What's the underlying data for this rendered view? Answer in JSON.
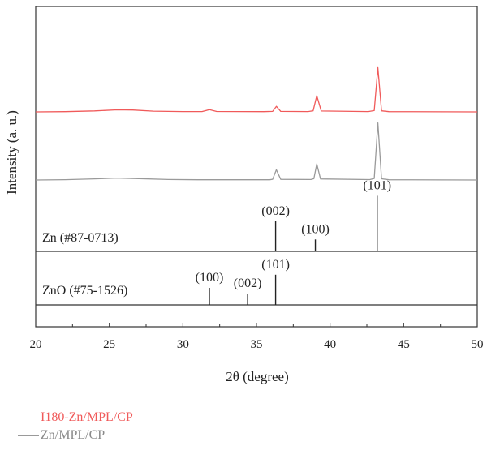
{
  "chart_data": {
    "type": "line",
    "xlabel": "2θ (degree)",
    "ylabel": "Intensity (a. u.)",
    "xlim": [
      20,
      50
    ],
    "x_ticks": [
      "20",
      "25",
      "30",
      "35",
      "40",
      "45",
      "50"
    ],
    "series": [
      {
        "name": "I180-Zn/MPL/CP",
        "color": "#f05a5a",
        "baseline": 0,
        "points": [
          [
            20,
            0
          ],
          [
            22,
            0.3
          ],
          [
            24,
            1.1
          ],
          [
            25.5,
            2.4
          ],
          [
            26.6,
            2.2
          ],
          [
            28,
            0.9
          ],
          [
            30,
            0.4
          ],
          [
            31.3,
            0.4
          ],
          [
            31.8,
            2.6
          ],
          [
            32.3,
            0.5
          ],
          [
            35.5,
            0.3
          ],
          [
            36.1,
            0.6
          ],
          [
            36.35,
            6.5
          ],
          [
            36.65,
            0.6
          ],
          [
            38.5,
            0.4
          ],
          [
            38.85,
            1.2
          ],
          [
            39.1,
            19
          ],
          [
            39.4,
            1.0
          ],
          [
            42.6,
            0.4
          ],
          [
            43,
            1.5
          ],
          [
            43.25,
            52
          ],
          [
            43.5,
            1.2
          ],
          [
            44,
            0.3
          ],
          [
            50,
            0
          ]
        ]
      },
      {
        "name": "Zn/MPL/CP",
        "color": "#9a9a9a",
        "baseline": 0,
        "points": [
          [
            20,
            0
          ],
          [
            22,
            0.4
          ],
          [
            24,
            1.3
          ],
          [
            25.5,
            2.3
          ],
          [
            27,
            1.6
          ],
          [
            29,
            0.6
          ],
          [
            31,
            0.3
          ],
          [
            35.9,
            0.3
          ],
          [
            36.1,
            0.9
          ],
          [
            36.35,
            12
          ],
          [
            36.65,
            0.8
          ],
          [
            38.7,
            0.6
          ],
          [
            38.9,
            1.5
          ],
          [
            39.1,
            19
          ],
          [
            39.35,
            1.2
          ],
          [
            42.7,
            0.5
          ],
          [
            43,
            1.8
          ],
          [
            43.25,
            67
          ],
          [
            43.5,
            1.4
          ],
          [
            44,
            0.3
          ],
          [
            50,
            0
          ]
        ]
      }
    ],
    "reference_patterns": [
      {
        "label": "Zn (#87-0713)",
        "peaks": [
          {
            "x": 36.3,
            "hkl": "(002)",
            "height": 0.53
          },
          {
            "x": 39.0,
            "hkl": "(100)",
            "height": 0.21
          },
          {
            "x": 43.2,
            "hkl": "(101)",
            "height": 0.98
          }
        ]
      },
      {
        "label": "ZnO (#75-1526)",
        "peaks": [
          {
            "x": 31.8,
            "hkl": "(100)",
            "height": 0.35
          },
          {
            "x": 34.4,
            "hkl": "(002)",
            "height": 0.23
          },
          {
            "x": 36.3,
            "hkl": "(101)",
            "height": 0.62
          }
        ]
      }
    ]
  }
}
